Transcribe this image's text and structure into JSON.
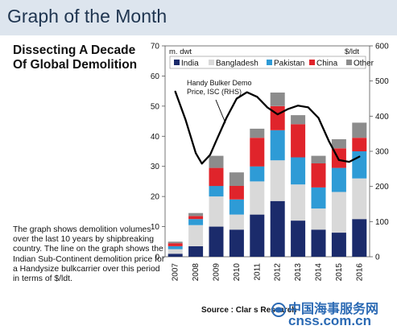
{
  "header": {
    "title": "Graph of the Month"
  },
  "subtitle_line1": "Dissecting A Decade",
  "subtitle_line2": "Of Global Demolition",
  "description": "The graph shows demolition volumes over the last 10 years by shipbreaking country. The line on the graph shows the Indian Sub-Continent demolition price for a Handysize bulkcarrier over this period in terms of $/ldt.",
  "source": "Source : Clar        s Research",
  "watermark": {
    "line1": "中国海事服务网",
    "line2": "cnss.com.cn"
  },
  "colors": {
    "India": "#1b2b6b",
    "Bangladesh": "#d9d9d9",
    "Pakistan": "#2e9bd6",
    "China": "#e0242b",
    "Other": "#8c8c8c",
    "line": "#000000"
  },
  "chart_data": {
    "type": "bar",
    "stacked": true,
    "categories": [
      "2007",
      "2008",
      "2009",
      "2010",
      "2011",
      "2012",
      "2013",
      "2014",
      "2015",
      "2016"
    ],
    "series": [
      {
        "name": "India",
        "values": [
          1.0,
          3.5,
          10.0,
          9.0,
          14.0,
          18.5,
          12.0,
          9.0,
          8.0,
          12.5
        ]
      },
      {
        "name": "Bangladesh",
        "values": [
          1.5,
          7.0,
          10.0,
          5.0,
          11.0,
          13.5,
          12.0,
          7.0,
          13.5,
          13.5
        ]
      },
      {
        "name": "Pakistan",
        "values": [
          1.0,
          2.0,
          3.5,
          5.0,
          5.0,
          10.0,
          9.0,
          7.0,
          8.0,
          9.0
        ]
      },
      {
        "name": "China",
        "values": [
          1.0,
          1.0,
          6.0,
          4.5,
          9.5,
          8.0,
          11.0,
          8.0,
          6.5,
          4.5
        ]
      },
      {
        "name": "Other",
        "values": [
          0.5,
          1.0,
          4.0,
          4.5,
          3.0,
          4.5,
          3.0,
          2.5,
          3.0,
          5.0
        ]
      }
    ],
    "line": {
      "name": "Handy Bulker Demo Price, ISC (RHS)",
      "axis": "right",
      "points": [
        [
          2007.0,
          470
        ],
        [
          2007.5,
          390
        ],
        [
          2008.0,
          295
        ],
        [
          2008.3,
          265
        ],
        [
          2008.7,
          290
        ],
        [
          2009.0,
          330
        ],
        [
          2009.5,
          395
        ],
        [
          2010.0,
          450
        ],
        [
          2010.5,
          468
        ],
        [
          2011.0,
          455
        ],
        [
          2011.5,
          425
        ],
        [
          2012.0,
          405
        ],
        [
          2012.5,
          420
        ],
        [
          2013.0,
          430
        ],
        [
          2013.5,
          425
        ],
        [
          2014.0,
          395
        ],
        [
          2014.5,
          330
        ],
        [
          2015.0,
          275
        ],
        [
          2015.5,
          270
        ],
        [
          2016.0,
          285
        ]
      ]
    },
    "ylabel_left": "m. dwt",
    "ylabel_right": "$/ldt",
    "ylim_left": [
      0,
      70
    ],
    "yticks_left": [
      0,
      10,
      20,
      30,
      40,
      50,
      60,
      70
    ],
    "ylim_right": [
      0,
      600
    ],
    "yticks_right": [
      0,
      100,
      200,
      300,
      400,
      500,
      600
    ],
    "annotation": [
      "Handy Bulker Demo",
      "Price, ISC (RHS)"
    ],
    "legend": [
      "India",
      "Bangladesh",
      "Pakistan",
      "China",
      "Other"
    ],
    "legend_position": "top",
    "grid": false
  }
}
